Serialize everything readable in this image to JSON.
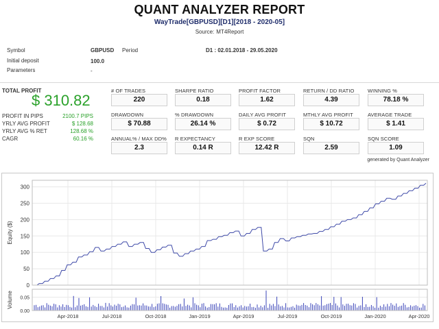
{
  "header": {
    "title": "QUANT ANALYZER REPORT",
    "subtitle": "WayTrade[GBPUSD][D1][2018 - 2020-05]",
    "source_label": "Source:",
    "source_value": "MT4Report"
  },
  "info": {
    "symbol_label": "Symbol",
    "symbol_value": "GBPUSD",
    "period_label": "Period",
    "period_value": "D1 : 02.01.2018 - 29.05.2020",
    "deposit_label": "Initial deposit",
    "deposit_value": "100.0",
    "params_label": "Parameters",
    "params_value": "-"
  },
  "summary": {
    "total_profit_label": "TOTAL PROFIT",
    "total_profit_value": "$ 310.82",
    "stats": [
      {
        "label": "PROFIT IN PIPS",
        "value": "2100.7 PIPS"
      },
      {
        "label": "YRLY AVG PROFIT",
        "value": "$ 128.68"
      },
      {
        "label": "YRLY AVG % RET",
        "value": "128.68 %"
      },
      {
        "label": "CAGR",
        "value": "60.16 %"
      }
    ]
  },
  "metrics": [
    {
      "label": "# OF TRADES",
      "value": "220"
    },
    {
      "label": "SHARPE RATIO",
      "value": "0.18"
    },
    {
      "label": "PROFIT FACTOR",
      "value": "1.62"
    },
    {
      "label": "RETURN / DD RATIO",
      "value": "4.39"
    },
    {
      "label": "WINNING %",
      "value": "78.18 %"
    },
    {
      "label": "DRAWDOWN",
      "value": "$ 70.88"
    },
    {
      "label": "% DRAWDOWN",
      "value": "26.14 %"
    },
    {
      "label": "DAILY AVG PROFIT",
      "value": "$ 0.72"
    },
    {
      "label": "MTHLY AVG PROFIT",
      "value": "$ 10.72"
    },
    {
      "label": "AVERAGE TRADE",
      "value": "$ 1.41"
    },
    {
      "label": "ANNUAL% / MAX DD%",
      "value": "2.3"
    },
    {
      "label": "R EXPECTANCY",
      "value": "0.14 R"
    },
    {
      "label": "R EXP SCORE",
      "value": "12.42 R"
    },
    {
      "label": "SQN",
      "value": "2.59"
    },
    {
      "label": "SQN SCORE",
      "value": "1.09"
    }
  ],
  "generated_by": "generated by Quant Analyzer",
  "colors": {
    "accent_green": "#2aa12a",
    "line_blue": "#3f4aa8",
    "volume_blue": "#3a44b8"
  },
  "chart_data": {
    "type": "line",
    "ylabel": "Equity ($)",
    "volume_label": "Volume",
    "ylim": [
      0,
      320
    ],
    "yticks": [
      "0",
      "50",
      "100",
      "150",
      "200",
      "250",
      "300"
    ],
    "volume_ylim": [
      0,
      0.08
    ],
    "volume_yticks": [
      "0.00",
      "0.05"
    ],
    "xticks": [
      "Apr-2018",
      "Jul-2018",
      "Oct-2018",
      "Jan-2019",
      "Apr-2019",
      "Jul-2019",
      "Oct-2019",
      "Jan-2020",
      "Apr-2020"
    ],
    "series": [
      {
        "values": [
          0,
          5,
          12,
          20,
          28,
          45,
          62,
          70,
          86,
          92,
          102,
          115,
          104,
          110,
          118,
          125,
          132,
          118,
          125,
          130,
          112,
          100,
          108,
          116,
          122,
          98,
          88,
          96,
          104,
          110,
          118,
          136,
          140,
          148,
          152,
          160,
          165,
          150,
          158,
          170,
          176,
          104,
          110,
          130,
          142,
          135,
          144,
          148,
          152,
          156,
          158,
          164,
          170,
          178,
          186,
          195,
          200,
          205,
          215,
          225,
          236,
          248,
          256,
          265,
          262,
          272,
          280,
          288,
          296,
          305,
          311
        ]
      }
    ]
  }
}
